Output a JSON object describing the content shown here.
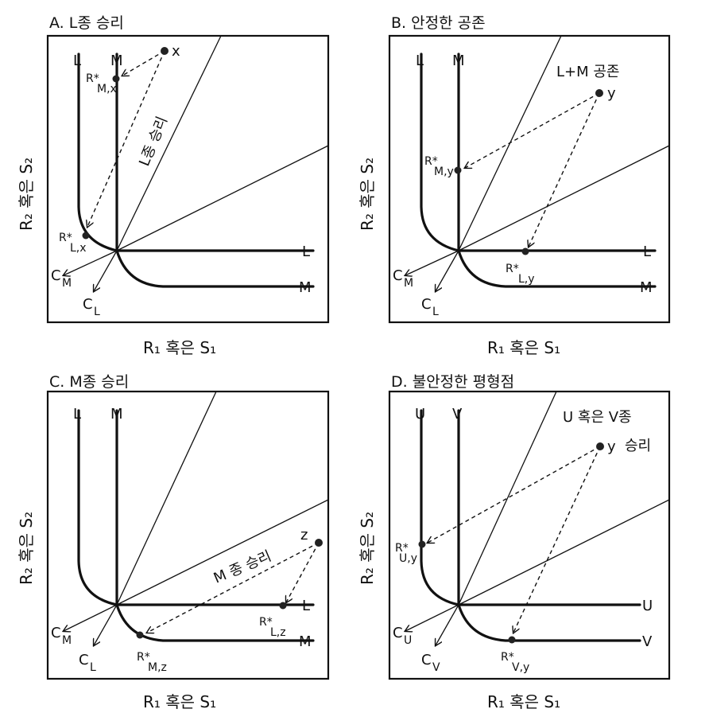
{
  "axis_x": "R₁ 혹은 S₁",
  "axis_y": "R₂ 혹은 S₂",
  "panels": {
    "a": {
      "title": "A.  L종 승리",
      "iso1": "L",
      "iso2": "M",
      "point": "x",
      "star1": "R*",
      "star1_sub": "M,x",
      "star2": "R*",
      "star2_sub": "L,x",
      "c1": "C",
      "c1_sub": "M",
      "c2": "C",
      "c2_sub": "L",
      "region": "L종 승리"
    },
    "b": {
      "title": "B.  안정한 공존",
      "iso1": "L",
      "iso2": "M",
      "point": "y",
      "star1": "R*",
      "star1_sub": "M,y",
      "star2": "R*",
      "star2_sub": "L,y",
      "c1": "C",
      "c1_sub": "M",
      "c2": "C",
      "c2_sub": "L",
      "region": "L+M 공존"
    },
    "c": {
      "title": "C.  M종 승리",
      "iso1": "L",
      "iso2": "M",
      "point": "z",
      "star1": "R*",
      "star1_sub": "L,z",
      "star2": "R*",
      "star2_sub": "M,z",
      "c1": "C",
      "c1_sub": "M",
      "c2": "C",
      "c2_sub": "L",
      "region": "M 종 승리"
    },
    "d": {
      "title": "D.  불안정한 평형점",
      "iso1": "U",
      "iso2": "V",
      "point": "y",
      "star1": "R*",
      "star1_sub": "U,y",
      "star2": "R*",
      "star2_sub": "V,y",
      "c1": "C",
      "c1_sub": "U",
      "c2": "C",
      "c2_sub": "V",
      "region_line1": "U 혹은 V종",
      "region_line2": "승리"
    }
  }
}
